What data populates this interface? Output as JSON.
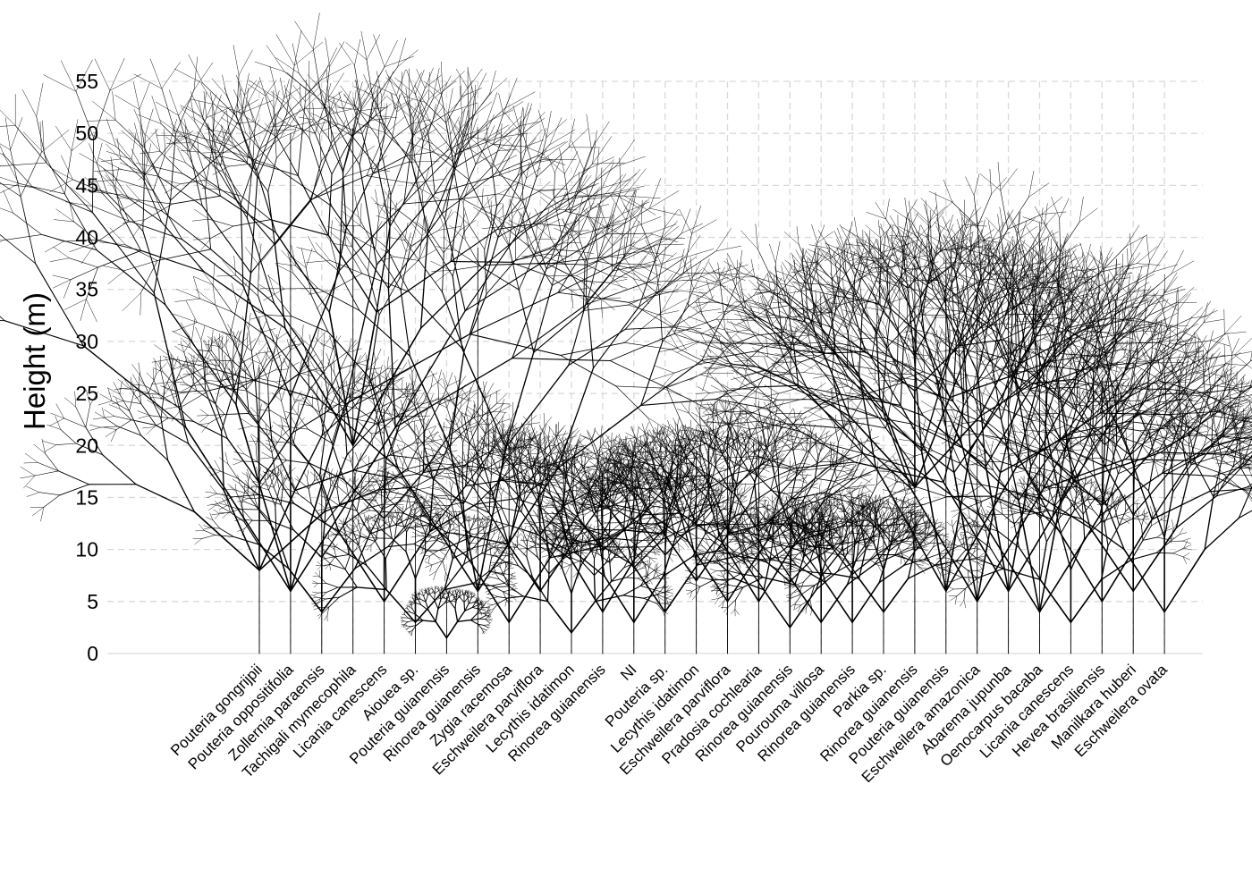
{
  "chart_data": {
    "type": "tree-silhouette",
    "ylabel": "Height (m)",
    "xlabel": "",
    "ylim": [
      0,
      55
    ],
    "yticks": [
      0,
      5,
      10,
      15,
      20,
      25,
      30,
      35,
      40,
      45,
      50,
      55
    ],
    "grid": true,
    "trees": [
      {
        "species": "Pouteria gongrijpii",
        "height": 28,
        "crown_base": 8,
        "crown_width": 9
      },
      {
        "species": "Pouteria oppositifolia",
        "height": 50.5,
        "crown_base": 6,
        "crown_width": 9
      },
      {
        "species": "Zollernia paraensis",
        "height": 16.5,
        "crown_base": 4,
        "crown_width": 3.5
      },
      {
        "species": "Tachigali mymecophila",
        "height": 51,
        "crown_base": 20,
        "crown_width": 5
      },
      {
        "species": "Licania canescens",
        "height": 24,
        "crown_base": 5,
        "crown_width": 4
      },
      {
        "species": "Aiouea sp.",
        "height": 13,
        "crown_base": 3,
        "crown_width": 3.5
      },
      {
        "species": "Pouteria guianensis",
        "height": 6,
        "crown_base": 1.5,
        "crown_width": 1
      },
      {
        "species": "Rinorea guianensis",
        "height": 39.5,
        "crown_base": 6,
        "crown_width": 7
      },
      {
        "species": "Zygia racemosa",
        "height": 20.5,
        "crown_base": 3,
        "crown_width": 3.5
      },
      {
        "species": "Eschweilera parviflora",
        "height": 19,
        "crown_base": 6,
        "crown_width": 3
      },
      {
        "species": "Lecythis idatimon",
        "height": 11,
        "crown_base": 2,
        "crown_width": 2.5
      },
      {
        "species": "Rinorea guianensis",
        "height": 18,
        "crown_base": 4,
        "crown_width": 2.5
      },
      {
        "species": "NI",
        "height": 15.5,
        "crown_base": 3,
        "crown_width": 2.5
      },
      {
        "species": "Pouteria sp.",
        "height": 17,
        "crown_base": 4,
        "crown_width": 3
      },
      {
        "species": "Lecythis idatimon",
        "height": 20,
        "crown_base": 7,
        "crown_width": 3
      },
      {
        "species": "Eschweilera parviflora",
        "height": 21.5,
        "crown_base": 5,
        "crown_width": 3.5
      },
      {
        "species": "Pradosia cochlearia",
        "height": 21,
        "crown_base": 5,
        "crown_width": 3
      },
      {
        "species": "Rinorea guianensis",
        "height": 13,
        "crown_base": 2.5,
        "crown_width": 2.5
      },
      {
        "species": "Pourouma villosa",
        "height": 13.5,
        "crown_base": 3,
        "crown_width": 2.5
      },
      {
        "species": "Rinorea guianensis",
        "height": 14,
        "crown_base": 3,
        "crown_width": 2.5
      },
      {
        "species": "Parkia sp.",
        "height": 13.5,
        "crown_base": 4,
        "crown_width": 2.5
      },
      {
        "species": "Rinorea guianensis",
        "height": 38,
        "crown_base": 16,
        "crown_width": 8
      },
      {
        "species": "Pouteria guianensis",
        "height": 38.5,
        "crown_base": 6,
        "crown_width": 5
      },
      {
        "species": "Eschweilera amazonica",
        "height": 35,
        "crown_base": 5,
        "crown_width": 5
      },
      {
        "species": "Abarema jupunba",
        "height": 35,
        "crown_base": 6,
        "crown_width": 5
      },
      {
        "species": "Oenocarpus bacaba",
        "height": 30,
        "crown_base": 4,
        "crown_width": 5
      },
      {
        "species": "Licania canescens",
        "height": 15,
        "crown_base": 3,
        "crown_width": 3
      },
      {
        "species": "Hevea brasiliensis",
        "height": 27,
        "crown_base": 5,
        "crown_width": 4
      },
      {
        "species": "Manilkara huberi",
        "height": 23.5,
        "crown_base": 6,
        "crown_width": 4
      },
      {
        "species": "Eschweilera ovata",
        "height": 21,
        "crown_base": 4,
        "crown_width": 3.5
      }
    ]
  }
}
